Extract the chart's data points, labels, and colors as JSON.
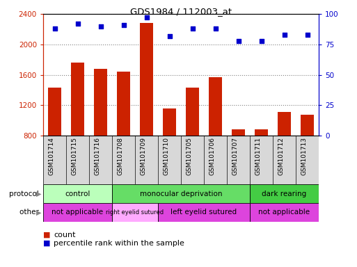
{
  "title": "GDS1984 / 112003_at",
  "samples": [
    "GSM101714",
    "GSM101715",
    "GSM101716",
    "GSM101708",
    "GSM101709",
    "GSM101710",
    "GSM101705",
    "GSM101706",
    "GSM101707",
    "GSM101711",
    "GSM101712",
    "GSM101713"
  ],
  "counts": [
    1430,
    1760,
    1680,
    1640,
    2280,
    1160,
    1430,
    1570,
    880,
    880,
    1110,
    1070
  ],
  "percentile": [
    88,
    92,
    90,
    91,
    97,
    82,
    88,
    88,
    78,
    78,
    83,
    83
  ],
  "ylim_left": [
    800,
    2400
  ],
  "ylim_right": [
    0,
    100
  ],
  "yticks_left": [
    800,
    1200,
    1600,
    2000,
    2400
  ],
  "yticks_right": [
    0,
    25,
    50,
    75,
    100
  ],
  "bar_color": "#cc2200",
  "dot_color": "#0000cc",
  "protocol_groups": [
    {
      "label": "control",
      "start": 0,
      "end": 3,
      "color": "#bbffbb"
    },
    {
      "label": "monocular deprivation",
      "start": 3,
      "end": 9,
      "color": "#66dd66"
    },
    {
      "label": "dark rearing",
      "start": 9,
      "end": 12,
      "color": "#44cc44"
    }
  ],
  "other_groups": [
    {
      "label": "not applicable",
      "start": 0,
      "end": 3,
      "color": "#dd44dd"
    },
    {
      "label": "right eyelid sutured",
      "start": 3,
      "end": 5,
      "color": "#ffaaff"
    },
    {
      "label": "left eyelid sutured",
      "start": 5,
      "end": 9,
      "color": "#dd44dd"
    },
    {
      "label": "not applicable",
      "start": 9,
      "end": 12,
      "color": "#dd44dd"
    }
  ],
  "protocol_label": "protocol",
  "other_label": "other",
  "legend_count_label": "count",
  "legend_pct_label": "percentile rank within the sample",
  "left_axis_color": "#cc2200",
  "right_axis_color": "#0000cc",
  "fig_w": 513,
  "fig_h": 384
}
